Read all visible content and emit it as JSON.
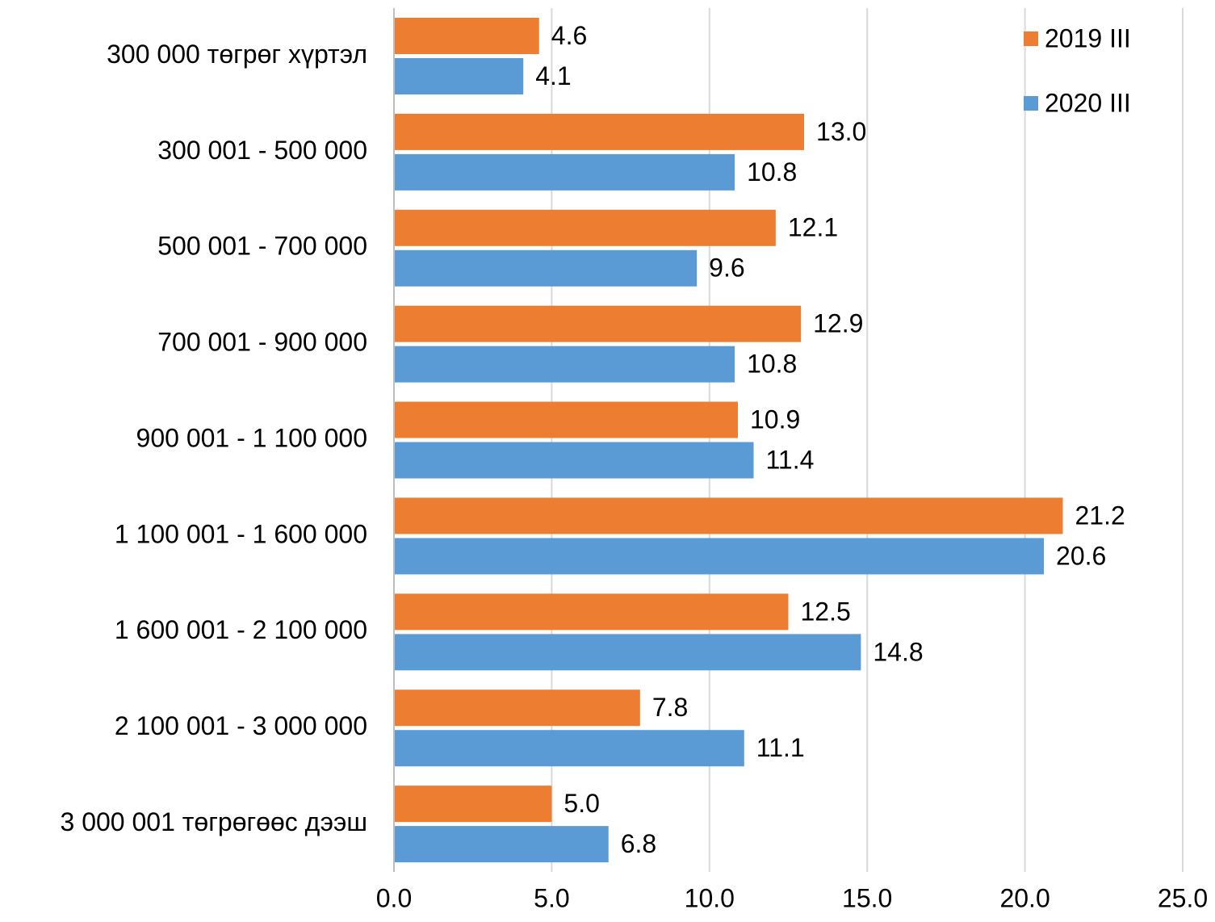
{
  "chart_data": {
    "type": "bar",
    "orientation": "horizontal",
    "categories": [
      "300 000 төгрөг хүртэл",
      "300 001 - 500 000",
      "500 001 - 700 000",
      "700 001 - 900 000",
      "900 001 - 1 100 000",
      "1 100 001 - 1 600 000",
      "1 600 001 - 2 100 000",
      "2 100 001 - 3 000 000",
      "3 000 001 төгрөгөөс дээш"
    ],
    "series": [
      {
        "name": "2019 III",
        "color": "#ed7d31",
        "values": [
          4.6,
          13.0,
          12.1,
          12.9,
          10.9,
          21.2,
          12.5,
          7.8,
          5.0
        ],
        "value_labels": [
          "4.6",
          "13.0",
          "12.1",
          "12.9",
          "10.9",
          "21.2",
          "12.5",
          "7.8",
          "5.0"
        ]
      },
      {
        "name": "2020 III",
        "color": "#5b9bd5",
        "values": [
          4.1,
          10.8,
          9.6,
          10.8,
          11.4,
          20.6,
          14.8,
          11.1,
          6.8
        ],
        "value_labels": [
          "4.1",
          "10.8",
          "9.6",
          "10.8",
          "11.4",
          "20.6",
          "14.8",
          "11.1",
          "6.8"
        ]
      }
    ],
    "xlim": [
      0,
      25
    ],
    "xticks": [
      {
        "value": 0,
        "label": "0.0"
      },
      {
        "value": 5,
        "label": "5.0"
      },
      {
        "value": 10,
        "label": "10.0"
      },
      {
        "value": 15,
        "label": "15.0"
      },
      {
        "value": 20,
        "label": "20.0"
      },
      {
        "value": 25,
        "label": "25.0"
      }
    ],
    "grid": true,
    "legend": "top-right"
  }
}
